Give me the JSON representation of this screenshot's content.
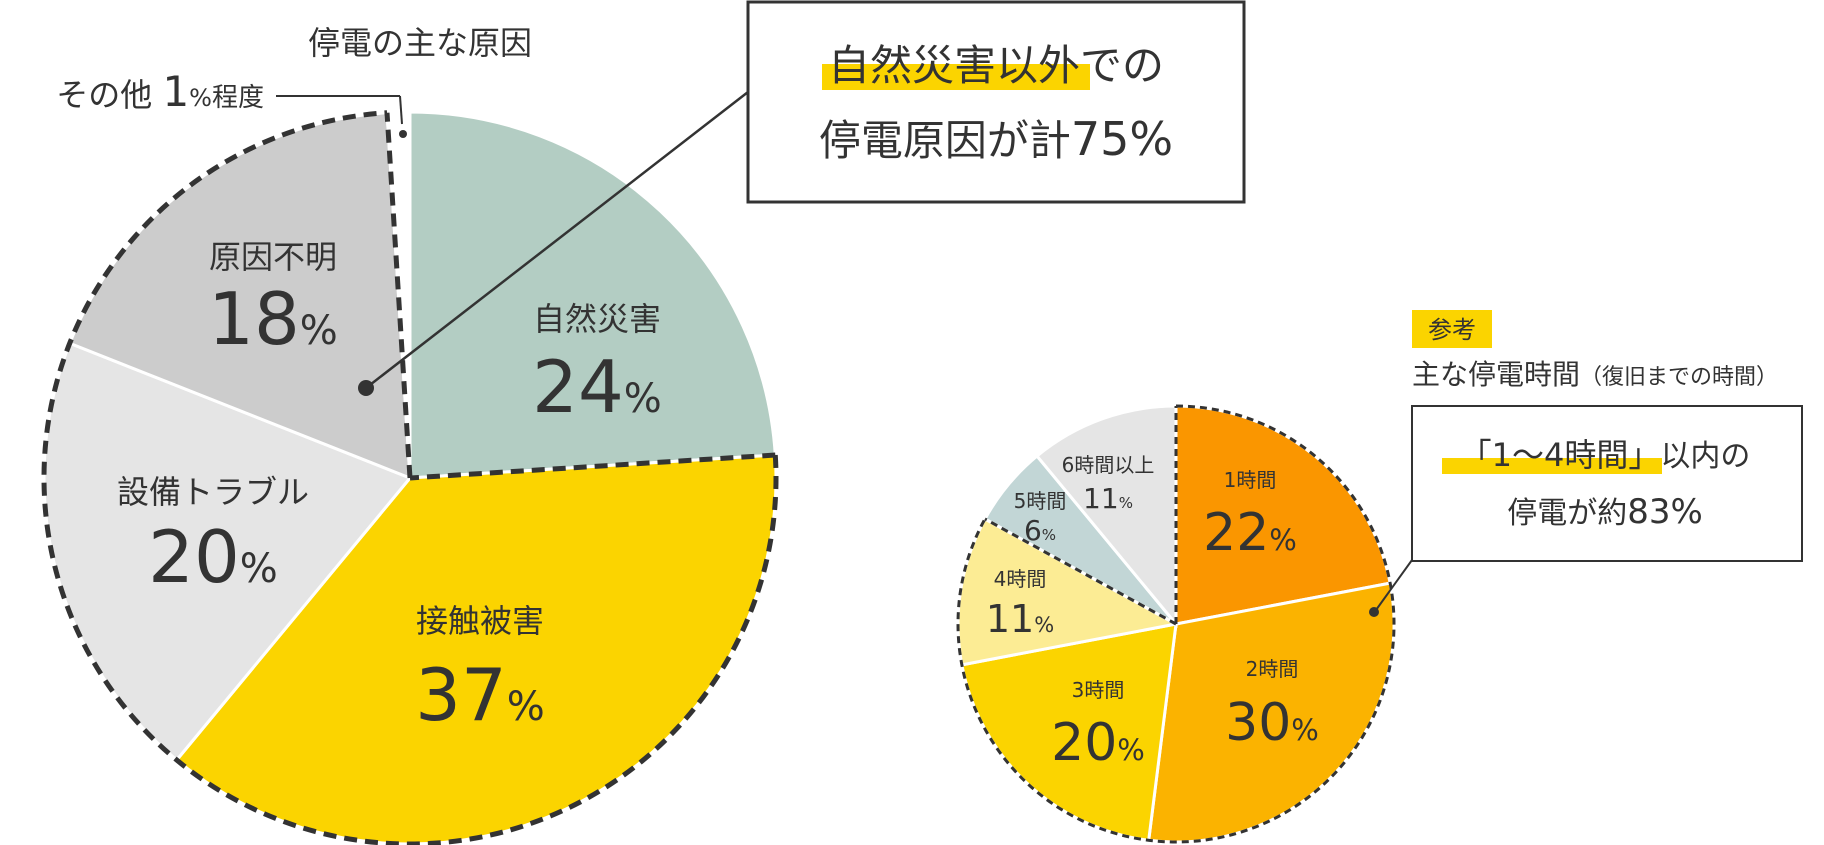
{
  "chart_data": [
    {
      "type": "pie",
      "title": "停電の主な原因",
      "note_label": "その他",
      "note_value": "1",
      "note_unit": "%",
      "note_suffix": "程度",
      "categories": [
        "自然災害",
        "接触被害",
        "設備トラブル",
        "原因不明",
        "その他"
      ],
      "values": [
        24,
        37,
        20,
        18,
        1
      ],
      "unit": "%",
      "colors": [
        "#b3cdc3",
        "#fbd400",
        "#e5e5e5",
        "#cccccc",
        "#ffffff"
      ],
      "callout": {
        "highlight": "自然災害以外",
        "line1_rest": "での",
        "line2_text": "停電原因が計",
        "line2_value": "75",
        "line2_unit": "%"
      }
    },
    {
      "type": "pie",
      "badge": "参考",
      "title": "主な停電時間",
      "subtitle": "（復旧までの時間）",
      "categories": [
        "1時間",
        "2時間",
        "3時間",
        "4時間",
        "5時間",
        "6時間以上"
      ],
      "values": [
        22,
        30,
        20,
        11,
        6,
        11
      ],
      "unit": "%",
      "colors": [
        "#fa9600",
        "#fbb300",
        "#fbd400",
        "#fcec94",
        "#c2d6d6",
        "#e5e5e5"
      ],
      "callout": {
        "highlight": "「1～4時間」",
        "line1_rest": "以内の",
        "line2_text": "停電が約",
        "line2_value": "83",
        "line2_unit": "%"
      }
    }
  ],
  "colors": {
    "text": "#333333",
    "highlight": "#fbd400",
    "dash": "#333333"
  }
}
